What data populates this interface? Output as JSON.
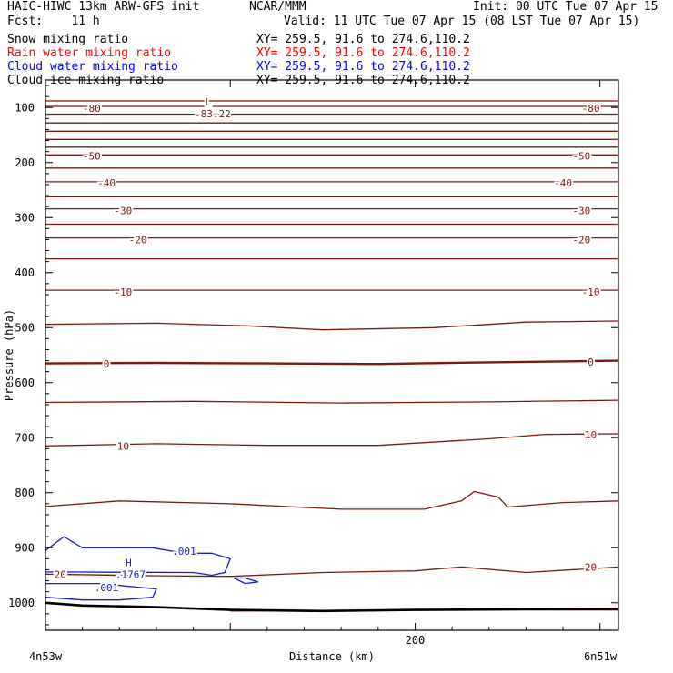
{
  "header": {
    "title": "HAIC-HIWC 13km ARW-GFS init",
    "org": "NCAR/MMM",
    "init": "Init: 00 UTC Tue 07 Apr 15",
    "fcst": "Fcst:    11 h",
    "valid": "Valid: 11 UTC Tue 07 Apr 15 (08 LST Tue 07 Apr 15)"
  },
  "fields": [
    {
      "name": "Snow mixing ratio",
      "xy": "XY= 259.5, 91.6 to 274.6,110.2",
      "color": "#000000"
    },
    {
      "name": "Rain water mixing ratio",
      "xy": "XY= 259.5, 91.6 to 274.6,110.2",
      "color": "#ff0000"
    },
    {
      "name": "Cloud water mixing ratio",
      "xy": "XY= 259.5, 91.6 to 274.6,110.2",
      "color": "#0000ff"
    },
    {
      "name": "Cloud ice mixing ratio",
      "xy": "XY= 259.5, 91.6 to 274.6,110.2",
      "color": "#000000"
    }
  ],
  "chart_data": {
    "type": "contour",
    "title": "",
    "xlabel": "Distance (km)",
    "ylabel": "Pressure (hPa)",
    "xlim": [
      0,
      310
    ],
    "ylim": [
      1050,
      50
    ],
    "y_ticks": [
      100,
      200,
      300,
      400,
      500,
      600,
      700,
      800,
      900,
      1000
    ],
    "x_ticks": [
      0,
      100,
      200,
      300
    ],
    "x_tick_labels": [
      "",
      "",
      "200",
      ""
    ],
    "x_end_labels": {
      "left": "4n53w",
      "right": "6n51w"
    },
    "colors": {
      "temperature": "#7a1a0e",
      "cloud_water": "#1a1acc",
      "terrain": "#000000"
    },
    "temperature_isotherms": [
      {
        "label": "-80",
        "points": [
          [
            0,
            98
          ],
          [
            310,
            98
          ]
        ],
        "labels_at": [
          [
            25,
            101
          ],
          [
            295,
            101
          ]
        ]
      },
      {
        "label": "",
        "points": [
          [
            0,
            88
          ],
          [
            310,
            88
          ]
        ]
      },
      {
        "label": "",
        "points": [
          [
            0,
            112
          ],
          [
            310,
            112
          ]
        ]
      },
      {
        "label": "",
        "points": [
          [
            0,
            128
          ],
          [
            310,
            128
          ]
        ]
      },
      {
        "label": "",
        "points": [
          [
            0,
            143
          ],
          [
            310,
            143
          ]
        ]
      },
      {
        "label": "",
        "points": [
          [
            0,
            158
          ],
          [
            310,
            158
          ]
        ]
      },
      {
        "label": "",
        "points": [
          [
            0,
            172
          ],
          [
            310,
            172
          ]
        ]
      },
      {
        "label": "-50",
        "points": [
          [
            0,
            186
          ],
          [
            310,
            186
          ]
        ],
        "labels_at": [
          [
            25,
            188
          ],
          [
            290,
            188
          ]
        ]
      },
      {
        "label": "",
        "points": [
          [
            0,
            210
          ],
          [
            310,
            210
          ]
        ]
      },
      {
        "label": "-40",
        "points": [
          [
            0,
            235
          ],
          [
            310,
            235
          ]
        ],
        "labels_at": [
          [
            33,
            237
          ],
          [
            280,
            237
          ]
        ]
      },
      {
        "label": "",
        "points": [
          [
            0,
            262
          ],
          [
            310,
            262
          ]
        ]
      },
      {
        "label": "-30",
        "points": [
          [
            0,
            284
          ],
          [
            310,
            284
          ]
        ],
        "labels_at": [
          [
            42,
            287
          ],
          [
            290,
            287
          ]
        ]
      },
      {
        "label": "",
        "points": [
          [
            0,
            312
          ],
          [
            310,
            312
          ]
        ]
      },
      {
        "label": "-20",
        "points": [
          [
            0,
            337
          ],
          [
            310,
            337
          ]
        ],
        "labels_at": [
          [
            50,
            340
          ],
          [
            290,
            340
          ]
        ]
      },
      {
        "label": "",
        "points": [
          [
            0,
            375
          ],
          [
            310,
            375
          ]
        ]
      },
      {
        "label": "-10",
        "points": [
          [
            0,
            432
          ],
          [
            310,
            432
          ]
        ],
        "labels_at": [
          [
            42,
            435
          ],
          [
            295,
            435
          ]
        ]
      },
      {
        "label": "",
        "points": [
          [
            0,
            494
          ],
          [
            60,
            492
          ],
          [
            110,
            497
          ],
          [
            150,
            504
          ],
          [
            210,
            500
          ],
          [
            260,
            490
          ],
          [
            310,
            488
          ]
        ]
      },
      {
        "label": "0",
        "points": [
          [
            0,
            565
          ],
          [
            60,
            564
          ],
          [
            120,
            565
          ],
          [
            180,
            566
          ],
          [
            240,
            563
          ],
          [
            310,
            560
          ]
        ],
        "labels_at": [
          [
            33,
            566
          ],
          [
            295,
            562
          ]
        ],
        "bold": true
      },
      {
        "label": "",
        "points": [
          [
            0,
            636
          ],
          [
            80,
            634
          ],
          [
            160,
            637
          ],
          [
            240,
            635
          ],
          [
            310,
            632
          ]
        ]
      },
      {
        "label": "10",
        "points": [
          [
            0,
            715
          ],
          [
            60,
            711
          ],
          [
            120,
            714
          ],
          [
            180,
            714
          ],
          [
            240,
            702
          ],
          [
            270,
            694
          ],
          [
            310,
            693
          ]
        ],
        "labels_at": [
          [
            42,
            715
          ],
          [
            295,
            695
          ]
        ]
      },
      {
        "label": "",
        "points": [
          [
            0,
            825
          ],
          [
            40,
            815
          ],
          [
            100,
            820
          ],
          [
            160,
            830
          ],
          [
            205,
            830
          ],
          [
            225,
            815
          ],
          [
            232,
            798
          ],
          [
            245,
            808
          ],
          [
            250,
            826
          ],
          [
            280,
            818
          ],
          [
            310,
            815
          ]
        ]
      },
      {
        "label": "20",
        "points": [
          [
            0,
            948
          ],
          [
            60,
            951
          ],
          [
            100,
            952
          ],
          [
            150,
            945
          ],
          [
            200,
            942
          ],
          [
            225,
            935
          ],
          [
            260,
            945
          ],
          [
            310,
            935
          ]
        ],
        "labels_at": [
          [
            8,
            948
          ],
          [
            295,
            935
          ]
        ]
      },
      {
        "label": "",
        "points": [
          [
            100,
            1015
          ],
          [
            200,
            1013
          ],
          [
            310,
            1010
          ]
        ]
      }
    ],
    "cloud_water_contours": [
      {
        "label": ".001",
        "points": [
          [
            0,
            905
          ],
          [
            10,
            880
          ],
          [
            20,
            900
          ],
          [
            58,
            900
          ],
          [
            75,
            910
          ],
          [
            90,
            910
          ],
          [
            100,
            920
          ],
          [
            97,
            945
          ],
          [
            90,
            950
          ],
          [
            80,
            945
          ],
          [
            0,
            944
          ]
        ],
        "labels_at": [
          [
            75,
            906
          ]
        ]
      },
      {
        "label": ".001",
        "points": [
          [
            0,
            965
          ],
          [
            30,
            965
          ],
          [
            45,
            970
          ],
          [
            60,
            975
          ],
          [
            58,
            990
          ],
          [
            40,
            995
          ],
          [
            20,
            995
          ],
          [
            0,
            990
          ]
        ],
        "labels_at": [
          [
            33,
            972
          ]
        ]
      },
      {
        "label": "",
        "points": [
          [
            102,
            955
          ],
          [
            108,
            965
          ],
          [
            115,
            962
          ],
          [
            108,
            955
          ],
          [
            102,
            955
          ]
        ]
      }
    ],
    "cloud_water_max": {
      "label": "H",
      "value": ".1767",
      "at": [
        45,
        940
      ]
    },
    "temperature_min": {
      "label": "L",
      "value": "-83.22",
      "at": [
        88,
        90
      ]
    },
    "terrain": [
      [
        0,
        1000
      ],
      [
        20,
        1005
      ],
      [
        60,
        1008
      ],
      [
        100,
        1013
      ],
      [
        150,
        1015
      ],
      [
        200,
        1013
      ],
      [
        260,
        1012
      ],
      [
        310,
        1012
      ]
    ]
  }
}
